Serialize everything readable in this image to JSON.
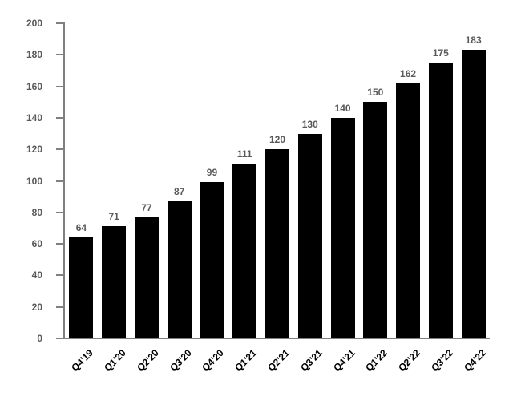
{
  "chart_data": {
    "type": "bar",
    "title": "",
    "xlabel": "",
    "ylabel": "",
    "categories": [
      "Q4'19",
      "Q1'20",
      "Q2'20",
      "Q3'20",
      "Q4'20",
      "Q1'21",
      "Q2'21",
      "Q3'21",
      "Q4'21",
      "Q1'22",
      "Q2'22",
      "Q3'22",
      "Q4'22"
    ],
    "values": [
      64,
      71,
      77,
      87,
      99,
      111,
      120,
      130,
      140,
      150,
      162,
      175,
      183
    ],
    "ylim": [
      0,
      200
    ],
    "ytick_step": 20,
    "grid": false,
    "legend_position": "none",
    "data_labels_shown": true,
    "colors": {
      "bar": "#000000",
      "axis": "#808080",
      "ytick_label": "#595959",
      "data_label": "#595959",
      "xtick_label": "#000000",
      "background": "#ffffff"
    }
  }
}
